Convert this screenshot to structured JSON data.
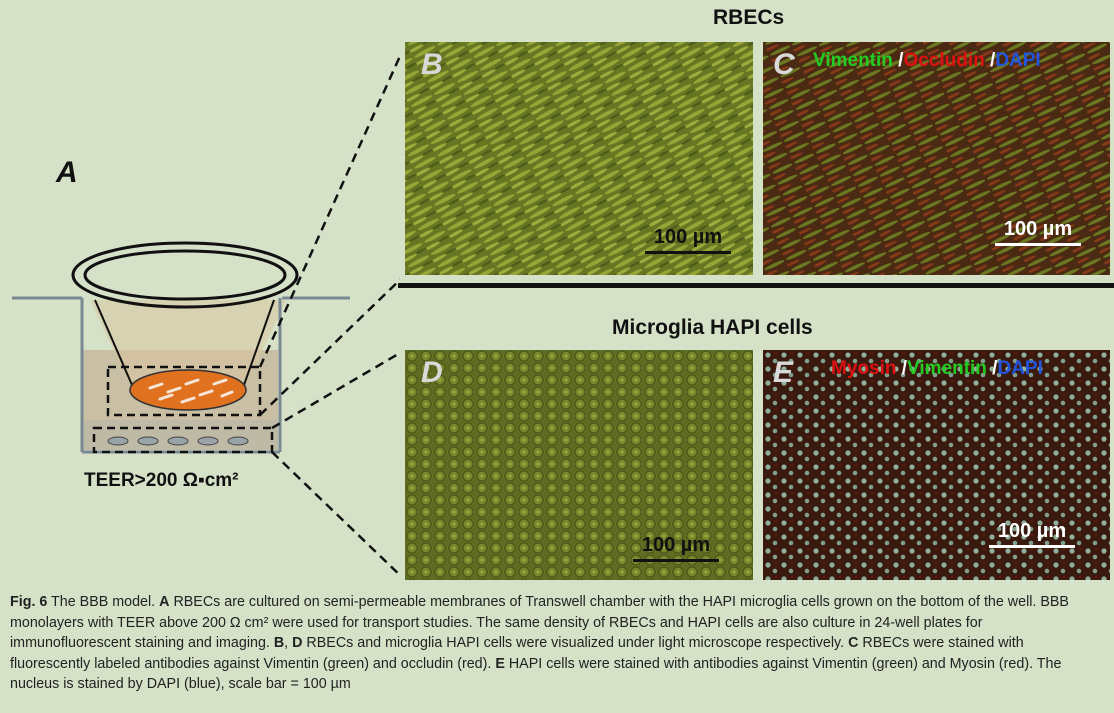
{
  "figure": {
    "panel_a": {
      "label": "A",
      "teer_label": "TEER>200 Ω▪cm²"
    },
    "row_top": {
      "title": "RBECs",
      "panel_b": {
        "label": "B",
        "scale": "100 µm"
      },
      "panel_c": {
        "label": "C",
        "scale": "100 µm",
        "stain": [
          {
            "text": "Vimentin",
            "color": "#22cc22"
          },
          {
            "text": " /",
            "color": "#ffffff"
          },
          {
            "text": "Occludin",
            "color": "#dd1111"
          },
          {
            "text": " /",
            "color": "#ffffff"
          },
          {
            "text": "DAPI",
            "color": "#2255dd"
          }
        ]
      }
    },
    "row_bottom": {
      "title": "Microglia HAPI cells",
      "panel_d": {
        "label": "D",
        "scale": "100 µm"
      },
      "panel_e": {
        "label": "E",
        "scale": "100 µm",
        "stain": [
          {
            "text": "Myosin",
            "color": "#dd1111"
          },
          {
            "text": " /",
            "color": "#ffffff"
          },
          {
            "text": "Vimentin",
            "color": "#22cc22"
          },
          {
            "text": " /",
            "color": "#ffffff"
          },
          {
            "text": "DAPI",
            "color": "#2255dd"
          }
        ]
      }
    }
  },
  "caption": {
    "figure_label": "Fig. 6",
    "segments": [
      {
        "t": " The BBB model. ",
        "b": false
      },
      {
        "t": "A",
        "b": true
      },
      {
        "t": " RBECs are cultured on semi-permeable membranes of Transwell chamber with the HAPI microglia cells grown on the bottom of the well. BBB monolayers with TEER above 200 Ω cm² were used for transport studies. The same density of RBECs and HAPI cells are also culture in 24-well plates for immunofluorescent staining and imaging. ",
        "b": false
      },
      {
        "t": "B",
        "b": true
      },
      {
        "t": ", ",
        "b": false
      },
      {
        "t": "D",
        "b": true
      },
      {
        "t": " RBECs and microglia HAPI cells were visualized under light microscope respectively. ",
        "b": false
      },
      {
        "t": "C",
        "b": true
      },
      {
        "t": " RBECs were stained with fluorescently labeled antibodies against Vimentin (green) and occludin (red). ",
        "b": false
      },
      {
        "t": "E",
        "b": true
      },
      {
        "t": " HAPI cells were stained with antibodies against Vimentin (green) and Myosin (red). The nucleus is stained by DAPI (blue), scale bar = 100 µm",
        "b": false
      }
    ]
  }
}
